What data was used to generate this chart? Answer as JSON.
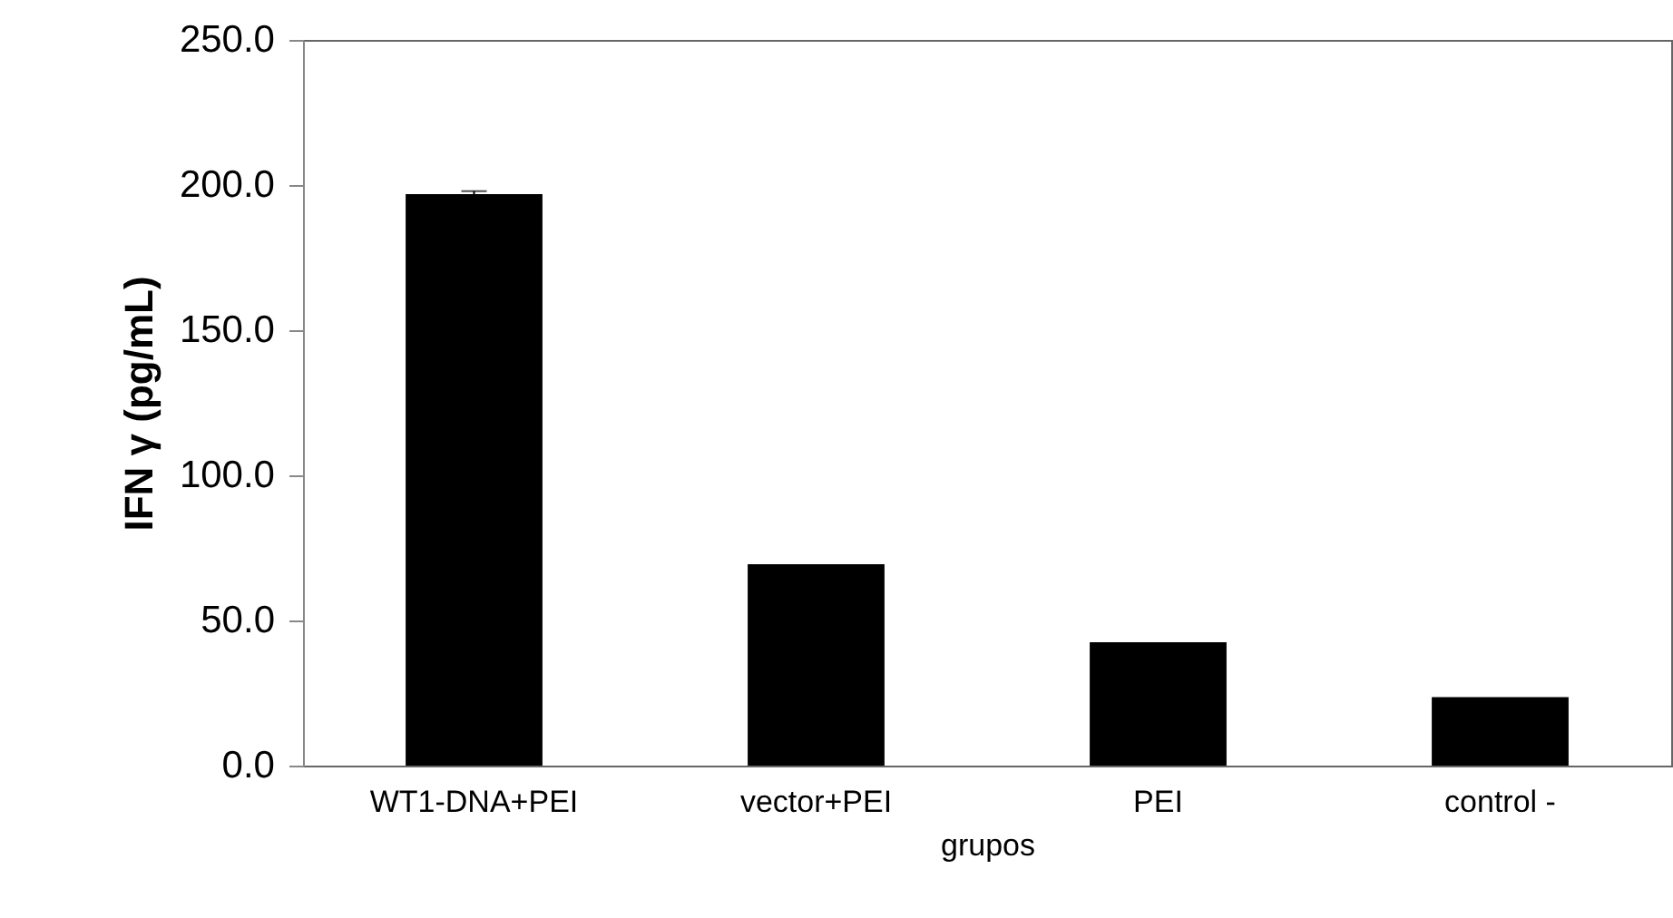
{
  "chart_data": {
    "type": "bar",
    "xlabel": "grupos",
    "ylabel": "IFN γ (pg/mL)",
    "categories": [
      "WT1-DNA+PEI",
      "vector+PEI",
      "PEI",
      "control -"
    ],
    "values": [
      196.9,
      69.4,
      42.5,
      23.6
    ],
    "errors": [
      1,
      null,
      null,
      null
    ],
    "color": "#000000",
    "ylim": [
      0,
      250
    ],
    "yticks": [
      {
        "value": 0,
        "label": "0.0"
      },
      {
        "value": 50,
        "label": "50.0"
      },
      {
        "value": 100,
        "label": "100.0"
      },
      {
        "value": 150,
        "label": "150.0"
      },
      {
        "value": 200,
        "label": "200.0"
      },
      {
        "value": 250,
        "label": "250.0"
      }
    ],
    "grid": false
  }
}
